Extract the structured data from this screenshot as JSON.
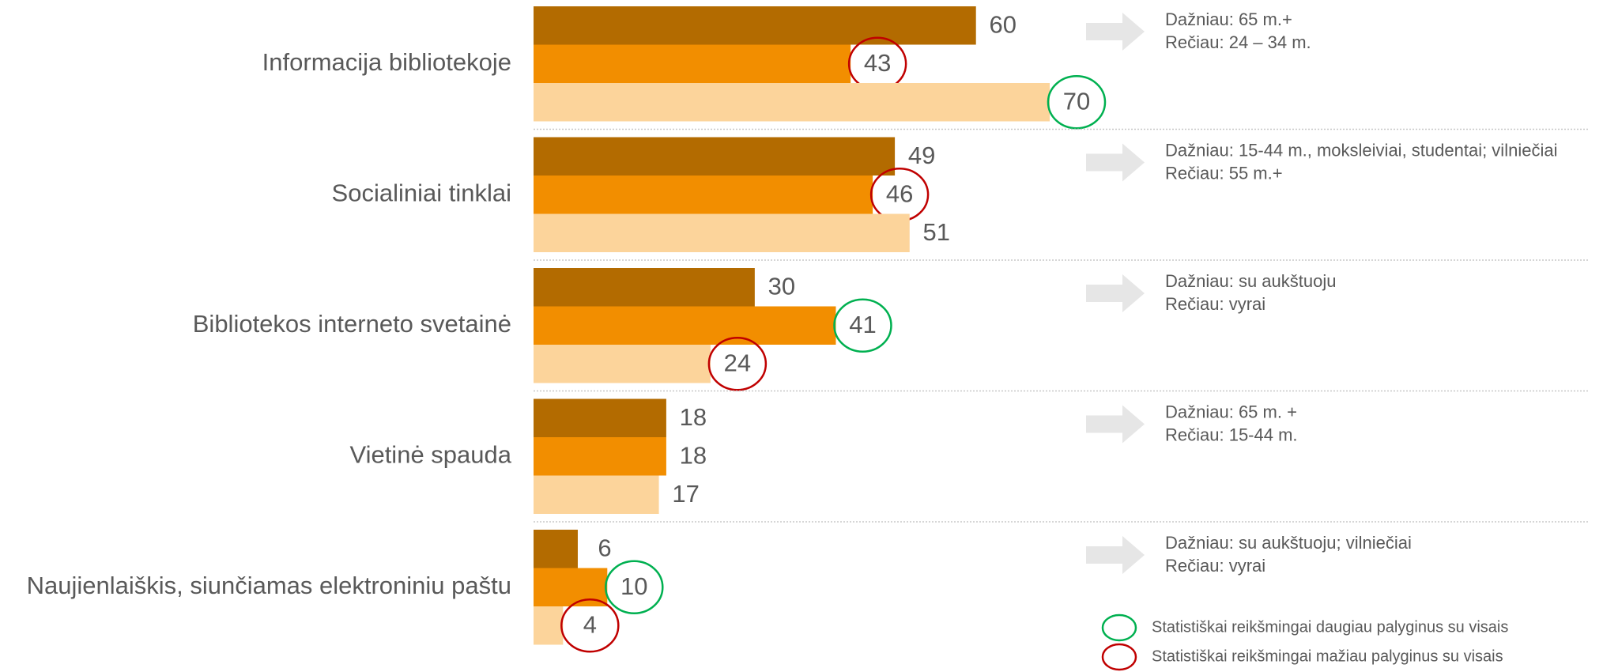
{
  "chart_data": {
    "type": "bar",
    "orientation": "horizontal",
    "categories": [
      "Informacija bibliotekoje",
      "Socialiniai tinklai",
      "Bibliotekos interneto svetainė",
      "Vietinė spauda",
      "Naujienlaiškis, siunčiamas elektroniniu paštu"
    ],
    "series": [
      {
        "color": "#b36b00",
        "values": [
          60,
          49,
          30,
          18,
          6
        ],
        "circle_colors": [
          null,
          null,
          null,
          null,
          null
        ]
      },
      {
        "color": "#f28e00",
        "values": [
          43,
          46,
          41,
          18,
          10
        ],
        "circle_colors": [
          "#c00000",
          "#c00000",
          "#00b050",
          null,
          "#00b050"
        ]
      },
      {
        "color": "#fcd49b",
        "values": [
          70,
          51,
          24,
          17,
          4
        ],
        "circle_colors": [
          "#00b050",
          null,
          "#c00000",
          null,
          "#c00000"
        ]
      }
    ],
    "annotations": [
      [
        "Dažniau: 65 m.+",
        "Rečiau: 24 – 34 m."
      ],
      [
        "Dažniau: 15-44 m., moksleiviai, studentai; vilniečiai",
        "Rečiau: 55 m.+"
      ],
      [
        "Dažniau: su aukštuoju",
        "Rečiau: vyrai"
      ],
      [
        "Dažniau: 65 m. +",
        "Rečiau: 15-44 m."
      ],
      [
        "Dažniau: su aukštuoju; vilniečiai",
        "Rečiau: vyrai"
      ]
    ],
    "legend": [
      {
        "text": "Statistiškai reikšmingai daugiau palyginus su visais",
        "color": "#00b050"
      },
      {
        "text": "Statistiškai reikšmingai mažiau palyginus su visais",
        "color": "#c00000"
      }
    ]
  }
}
